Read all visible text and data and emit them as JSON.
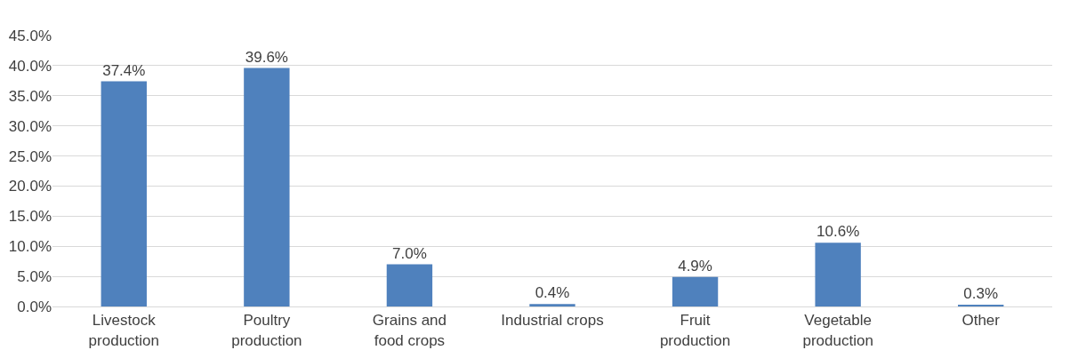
{
  "chart_data": {
    "type": "bar",
    "categories": [
      "Livestock\nproduction",
      "Poultry\nproduction",
      "Grains and\nfood crops",
      "Industrial crops",
      "Fruit\nproduction",
      "Vegetable\nproduction",
      "Other"
    ],
    "values": [
      37.4,
      39.6,
      7.0,
      0.4,
      4.9,
      10.6,
      0.3
    ],
    "value_labels": [
      "37.4%",
      "39.6%",
      "7.0%",
      "0.4%",
      "4.9%",
      "10.6%",
      "0.3%"
    ],
    "color": "#4f81bd",
    "ylim": [
      0,
      45
    ],
    "yticks": [
      {
        "value": 0,
        "label": "0.0%"
      },
      {
        "value": 5,
        "label": "5.0%"
      },
      {
        "value": 10,
        "label": "10.0%"
      },
      {
        "value": 15,
        "label": "15.0%"
      },
      {
        "value": 20,
        "label": "20.0%"
      },
      {
        "value": 25,
        "label": "25.0%"
      },
      {
        "value": 30,
        "label": "30.0%"
      },
      {
        "value": 35,
        "label": "35.0%"
      },
      {
        "value": 40,
        "label": "40.0%"
      },
      {
        "value": 45,
        "label": "45.0%"
      }
    ],
    "grid": "y",
    "legend": false
  }
}
